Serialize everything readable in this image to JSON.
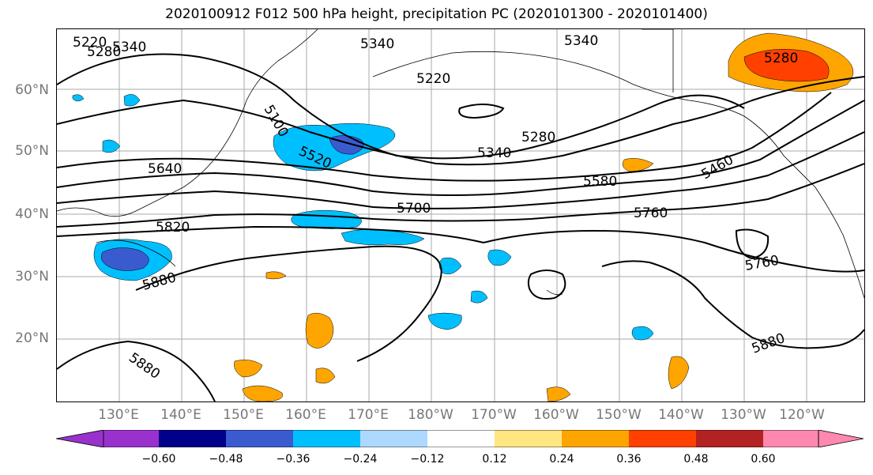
{
  "title": "2020100912 F012 500 hPa height, precipitation PC (2020101300 - 2020101400)",
  "lat_labels": [
    "60°N",
    "50°N",
    "40°N",
    "30°N",
    "20°N"
  ],
  "lon_labels": [
    "130°E",
    "140°E",
    "150°E",
    "160°E",
    "170°E",
    "180°W",
    "170°W",
    "160°W",
    "150°W",
    "140°W",
    "130°W",
    "120°W"
  ],
  "contour_labels": [
    "5220",
    "5280",
    "5340",
    "5340",
    "5340",
    "5220",
    "5100",
    "5520",
    "5640",
    "5280",
    "5340",
    "5460",
    "5580",
    "5700",
    "5760",
    "5820",
    "5880",
    "5760",
    "5880",
    "5880",
    "5280"
  ],
  "colorbar": {
    "ticks": [
      "−0.60",
      "−0.48",
      "−0.36",
      "−0.24",
      "−0.12",
      "0.12",
      "0.24",
      "0.36",
      "0.48",
      "0.60"
    ],
    "colors": [
      "#9932cc",
      "#00008b",
      "#3a5bcf",
      "#00bfff",
      "#add8ff",
      "#ffffff",
      "#ffe680",
      "#ffa500",
      "#ff4000",
      "#b22222",
      "#ff88b0"
    ]
  }
}
